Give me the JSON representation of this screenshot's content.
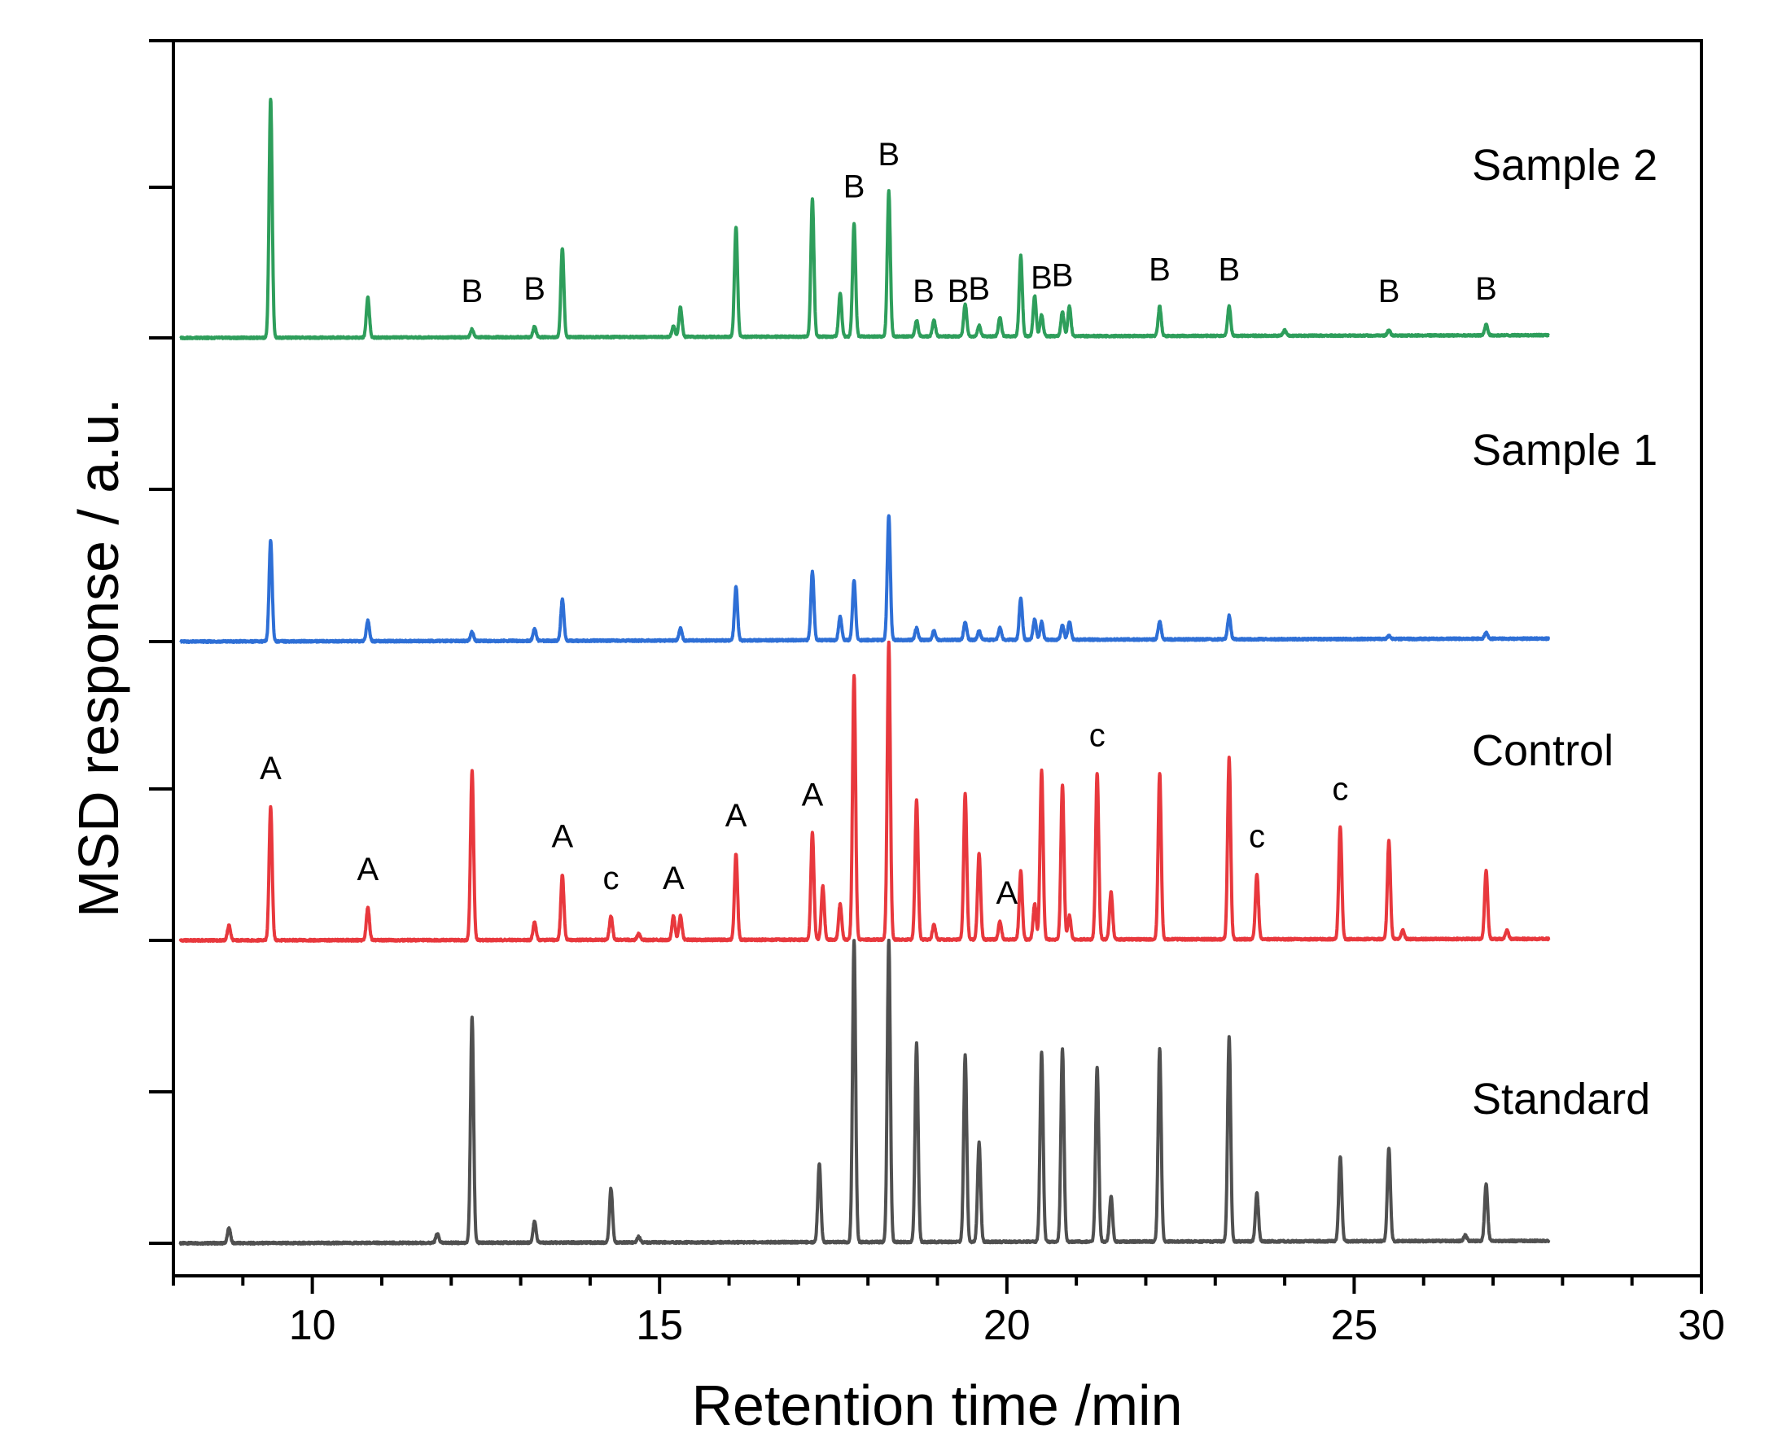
{
  "chart_data": {
    "type": "line",
    "xlabel": "Retention time /min",
    "ylabel": "MSD response / a.u.",
    "xlim": [
      8,
      30
    ],
    "x_ticks": [
      "10",
      "15",
      "20",
      "25",
      "30"
    ],
    "series": [
      {
        "name": "Standard",
        "color": "#505050",
        "x_end": 27.8,
        "drift": 0.008,
        "peaks": [
          [
            8.8,
            0.05
          ],
          [
            11.8,
            0.03
          ],
          [
            12.3,
            0.75
          ],
          [
            13.2,
            0.07
          ],
          [
            14.3,
            0.18
          ],
          [
            14.7,
            0.02
          ],
          [
            17.3,
            0.26
          ],
          [
            17.8,
            1.0
          ],
          [
            18.3,
            1.0
          ],
          [
            18.7,
            0.66
          ],
          [
            19.4,
            0.62
          ],
          [
            19.6,
            0.33
          ],
          [
            20.5,
            0.63
          ],
          [
            20.8,
            0.64
          ],
          [
            21.3,
            0.58
          ],
          [
            21.5,
            0.15
          ],
          [
            22.2,
            0.64
          ],
          [
            23.2,
            0.68
          ],
          [
            23.6,
            0.16
          ],
          [
            24.8,
            0.28
          ],
          [
            25.5,
            0.31
          ],
          [
            26.6,
            0.02
          ],
          [
            26.9,
            0.19
          ]
        ],
        "labels": []
      },
      {
        "name": "Control",
        "color": "#e8383d",
        "x_end": 27.8,
        "drift": 0.005,
        "peaks": [
          [
            8.8,
            0.05
          ],
          [
            9.4,
            0.45
          ],
          [
            10.8,
            0.11
          ],
          [
            12.3,
            0.57
          ],
          [
            13.2,
            0.06
          ],
          [
            13.6,
            0.22
          ],
          [
            14.3,
            0.08
          ],
          [
            14.7,
            0.02
          ],
          [
            15.2,
            0.08
          ],
          [
            15.3,
            0.08
          ],
          [
            16.1,
            0.29
          ],
          [
            17.2,
            0.36
          ],
          [
            17.35,
            0.18
          ],
          [
            17.6,
            0.12
          ],
          [
            17.8,
            0.89
          ],
          [
            18.3,
            1.0
          ],
          [
            18.7,
            0.47
          ],
          [
            18.95,
            0.05
          ],
          [
            19.4,
            0.49
          ],
          [
            19.6,
            0.29
          ],
          [
            19.9,
            0.06
          ],
          [
            20.2,
            0.23
          ],
          [
            20.4,
            0.12
          ],
          [
            20.5,
            0.57
          ],
          [
            20.8,
            0.52
          ],
          [
            20.9,
            0.08
          ],
          [
            21.3,
            0.56
          ],
          [
            21.5,
            0.16
          ],
          [
            22.2,
            0.56
          ],
          [
            23.2,
            0.61
          ],
          [
            23.6,
            0.22
          ],
          [
            24.8,
            0.38
          ],
          [
            25.5,
            0.33
          ],
          [
            25.7,
            0.03
          ],
          [
            26.9,
            0.23
          ],
          [
            27.2,
            0.03
          ]
        ],
        "labels": [
          {
            "text": "A",
            "x": 9.4
          },
          {
            "text": "A",
            "x": 10.8
          },
          {
            "text": "A",
            "x": 13.6
          },
          {
            "text": "c",
            "x": 14.3
          },
          {
            "text": "A",
            "x": 15.2
          },
          {
            "text": "A",
            "x": 16.1
          },
          {
            "text": "A",
            "x": 17.2
          },
          {
            "text": "A",
            "x": 20.0
          },
          {
            "text": "c",
            "x": 21.3
          },
          {
            "text": "c",
            "x": 23.6
          },
          {
            "text": "c",
            "x": 24.8
          }
        ]
      },
      {
        "name": "Sample 1",
        "color": "#2e6fd6",
        "x_end": 27.8,
        "drift": 0.01,
        "peaks": [
          [
            9.4,
            0.34
          ],
          [
            10.8,
            0.07
          ],
          [
            12.3,
            0.03
          ],
          [
            13.2,
            0.04
          ],
          [
            13.6,
            0.14
          ],
          [
            15.3,
            0.04
          ],
          [
            16.1,
            0.18
          ],
          [
            17.2,
            0.23
          ],
          [
            17.6,
            0.08
          ],
          [
            17.8,
            0.2
          ],
          [
            18.3,
            0.42
          ],
          [
            18.7,
            0.04
          ],
          [
            18.95,
            0.03
          ],
          [
            19.4,
            0.06
          ],
          [
            19.6,
            0.03
          ],
          [
            19.9,
            0.04
          ],
          [
            20.2,
            0.14
          ],
          [
            20.4,
            0.07
          ],
          [
            20.5,
            0.06
          ],
          [
            20.8,
            0.05
          ],
          [
            20.9,
            0.06
          ],
          [
            22.2,
            0.06
          ],
          [
            23.2,
            0.08
          ],
          [
            25.5,
            0.01
          ],
          [
            26.9,
            0.02
          ]
        ],
        "labels": []
      },
      {
        "name": "Sample 2",
        "color": "#2e9e5b",
        "x_end": 27.8,
        "drift": 0.01,
        "peaks": [
          [
            9.4,
            0.89
          ],
          [
            10.8,
            0.15
          ],
          [
            12.3,
            0.03
          ],
          [
            13.2,
            0.04
          ],
          [
            13.6,
            0.33
          ],
          [
            15.2,
            0.04
          ],
          [
            15.3,
            0.11
          ],
          [
            16.1,
            0.41
          ],
          [
            17.2,
            0.51
          ],
          [
            17.6,
            0.16
          ],
          [
            17.8,
            0.42
          ],
          [
            18.3,
            0.54
          ],
          [
            18.7,
            0.06
          ],
          [
            18.95,
            0.06
          ],
          [
            19.4,
            0.12
          ],
          [
            19.6,
            0.04
          ],
          [
            19.9,
            0.07
          ],
          [
            20.2,
            0.3
          ],
          [
            20.4,
            0.15
          ],
          [
            20.5,
            0.08
          ],
          [
            20.8,
            0.09
          ],
          [
            20.9,
            0.11
          ],
          [
            22.2,
            0.11
          ],
          [
            23.2,
            0.11
          ],
          [
            24.0,
            0.02
          ],
          [
            25.5,
            0.02
          ],
          [
            26.9,
            0.04
          ]
        ],
        "labels": [
          {
            "text": "B",
            "x": 12.3
          },
          {
            "text": "B",
            "x": 13.2
          },
          {
            "text": "B",
            "x": 17.8
          },
          {
            "text": "B",
            "x": 18.3
          },
          {
            "text": "B",
            "x": 18.8
          },
          {
            "text": "B",
            "x": 19.3
          },
          {
            "text": "B",
            "x": 19.6
          },
          {
            "text": "B",
            "x": 20.5
          },
          {
            "text": "B",
            "x": 20.8
          },
          {
            "text": "B",
            "x": 22.2
          },
          {
            "text": "B",
            "x": 23.2
          },
          {
            "text": "B",
            "x": 25.5
          },
          {
            "text": "B",
            "x": 26.9
          }
        ]
      }
    ]
  }
}
